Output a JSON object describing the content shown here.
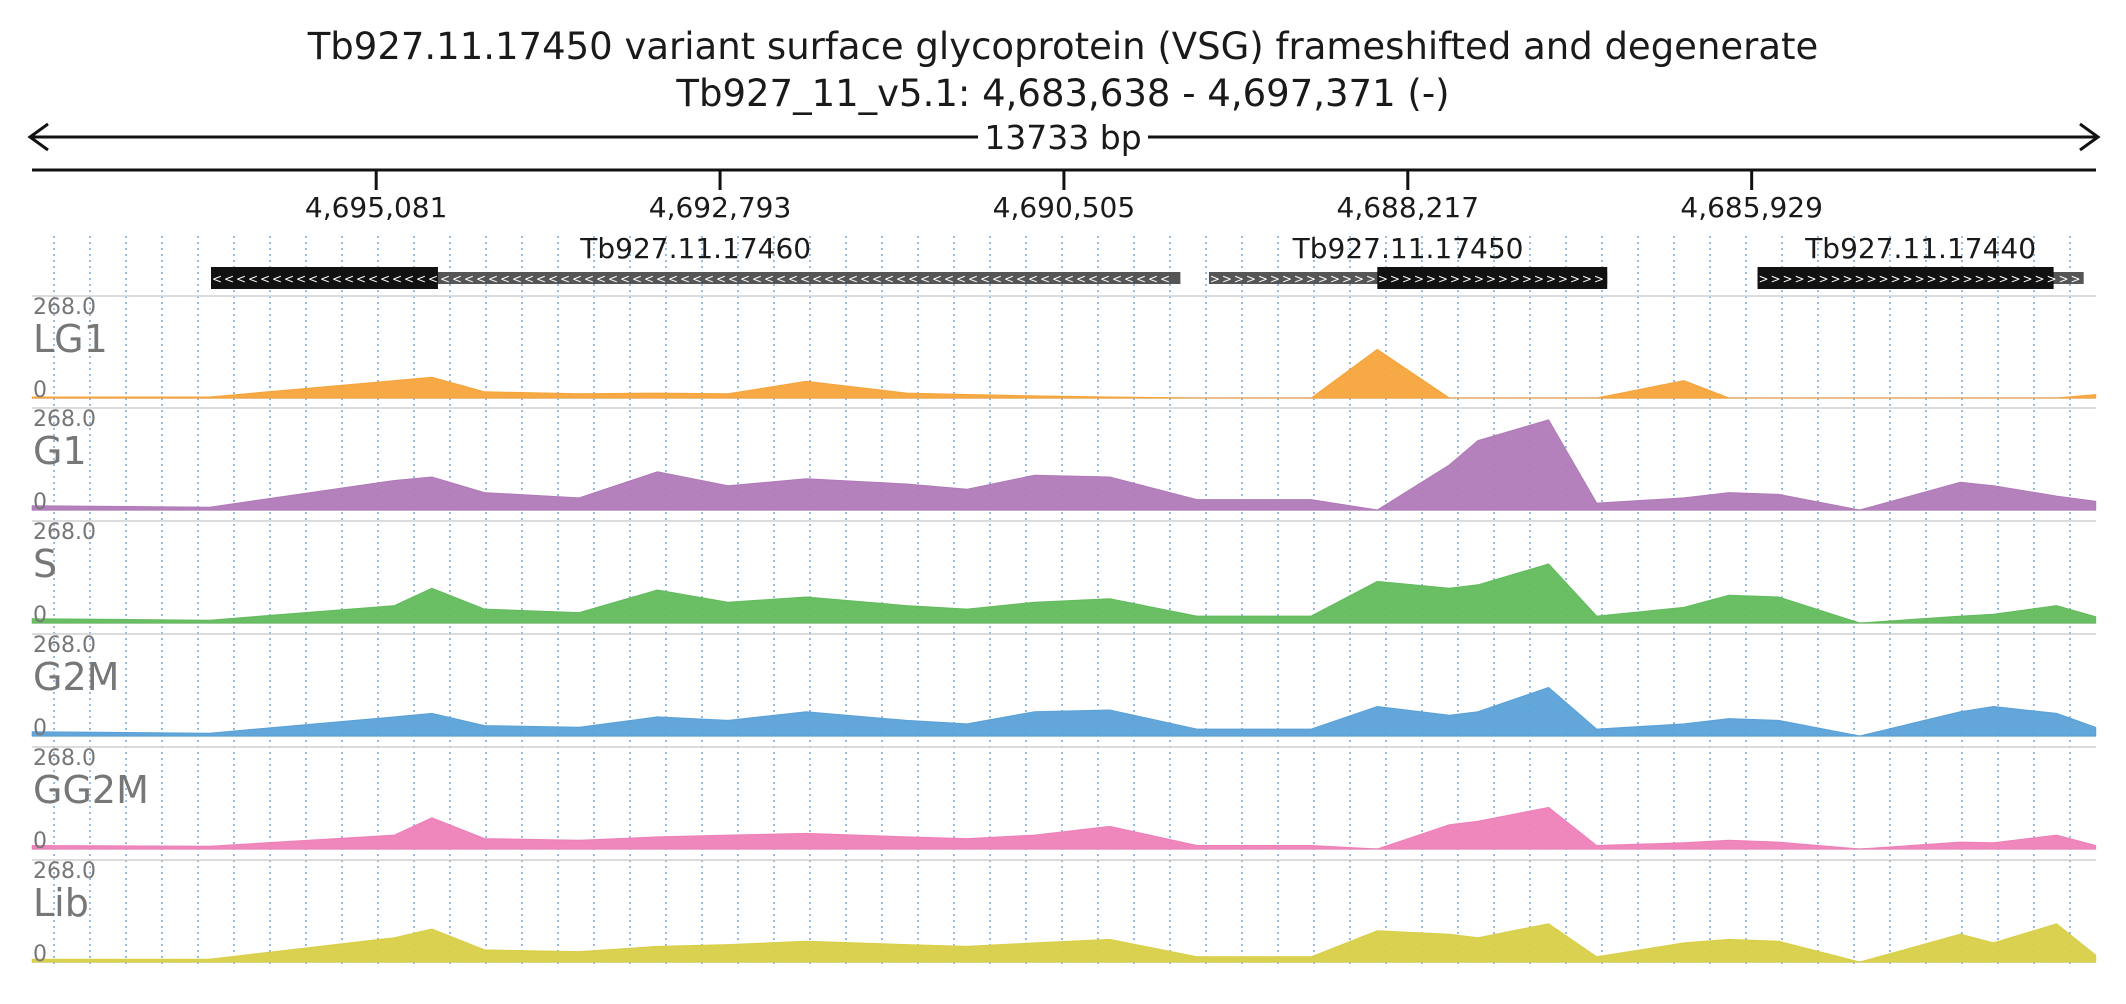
{
  "header": {
    "title": "Tb927.11.17450  variant surface glycoprotein (VSG)  frameshifted and degenerate",
    "location": "Tb927_11_v5.1: 4,683,638 - 4,697,371 (-)",
    "span_label": "13733 bp"
  },
  "colors": {
    "text": "#1a1a1a",
    "track_label": "#777777",
    "grid": "#7fa9d8",
    "gene_fill": "#111111",
    "gene_line": "#555555",
    "LG1": "#f5a43a",
    "G1": "#b07ab8",
    "S": "#62bb5c",
    "G2M": "#5aa1d8",
    "GG2M": "#ee7fb8",
    "Lib": "#d8cf47"
  },
  "genes": [
    {
      "name": "Tb927.11.17460",
      "strand": "-",
      "start": 4689730,
      "end": 4696180,
      "cds_start": 4694670,
      "cds_end": 4696180
    },
    {
      "name": "Tb927.11.17450",
      "strand": "+",
      "start": 4686890,
      "end": 4689540,
      "cds_start": 4686890,
      "cds_end": 4688420
    },
    {
      "name": "Tb927.11.17440",
      "strand": "+",
      "start": 4683720,
      "end": 4685890,
      "cds_start": 4683920,
      "cds_end": 4685890
    }
  ],
  "chart_data": {
    "type": "area",
    "title": "Tb927.11.17450  variant surface glycoprotein (VSG)  frameshifted and degenerate",
    "region": {
      "chrom": "Tb927_11_v5.1",
      "start": 4683638,
      "end": 4697371,
      "strand": "-"
    },
    "x_reversed": true,
    "xticks": [
      4695081,
      4692793,
      4690505,
      4688217,
      4685929
    ],
    "tick_labels": [
      "4,695,081",
      "4,692,793",
      "4,690,505",
      "4,688,217",
      "4,685,929"
    ],
    "ylim": [
      0,
      268.0
    ],
    "ymax_label": "268.0",
    "ymin_label": "0",
    "grid": true,
    "x": [
      4697370,
      4696190,
      4694960,
      4694710,
      4694360,
      4693730,
      4693210,
      4692740,
      4692220,
      4691550,
      4691150,
      4690700,
      4690200,
      4689620,
      4688860,
      4688420,
      4687940,
      4687750,
      4687280,
      4686960,
      4686380,
      4686080,
      4685750,
      4685210,
      4684540,
      4684320,
      4683900,
      4683640
    ],
    "series": [
      {
        "name": "LG1",
        "values": [
          3,
          3,
          50,
          60,
          18,
          12,
          14,
          12,
          48,
          14,
          10,
          6,
          3,
          0,
          0,
          140,
          0,
          0,
          0,
          0,
          50,
          0,
          0,
          0,
          0,
          0,
          0,
          10
        ]
      },
      {
        "name": "G1",
        "values": [
          12,
          8,
          85,
          95,
          50,
          35,
          110,
          70,
          90,
          75,
          60,
          100,
          95,
          30,
          30,
          0,
          130,
          200,
          260,
          20,
          35,
          50,
          45,
          0,
          80,
          70,
          40,
          25
        ]
      },
      {
        "name": "S",
        "values": [
          12,
          8,
          50,
          100,
          40,
          30,
          95,
          60,
          75,
          50,
          40,
          60,
          70,
          20,
          20,
          120,
          100,
          110,
          170,
          20,
          45,
          80,
          75,
          0,
          20,
          25,
          50,
          18
        ]
      },
      {
        "name": "G2M",
        "values": [
          12,
          8,
          55,
          65,
          30,
          25,
          55,
          45,
          70,
          45,
          35,
          70,
          75,
          20,
          20,
          85,
          60,
          70,
          140,
          20,
          35,
          50,
          45,
          0,
          70,
          85,
          65,
          25
        ]
      },
      {
        "name": "GG2M",
        "values": [
          10,
          8,
          40,
          90,
          30,
          25,
          35,
          40,
          45,
          35,
          30,
          40,
          65,
          10,
          10,
          0,
          70,
          80,
          120,
          10,
          18,
          25,
          20,
          0,
          20,
          18,
          40,
          10
        ]
      },
      {
        "name": "Lib",
        "values": [
          8,
          8,
          70,
          95,
          35,
          30,
          45,
          50,
          60,
          50,
          45,
          55,
          65,
          15,
          15,
          90,
          80,
          70,
          110,
          15,
          55,
          65,
          60,
          0,
          80,
          55,
          110,
          20
        ]
      }
    ]
  }
}
